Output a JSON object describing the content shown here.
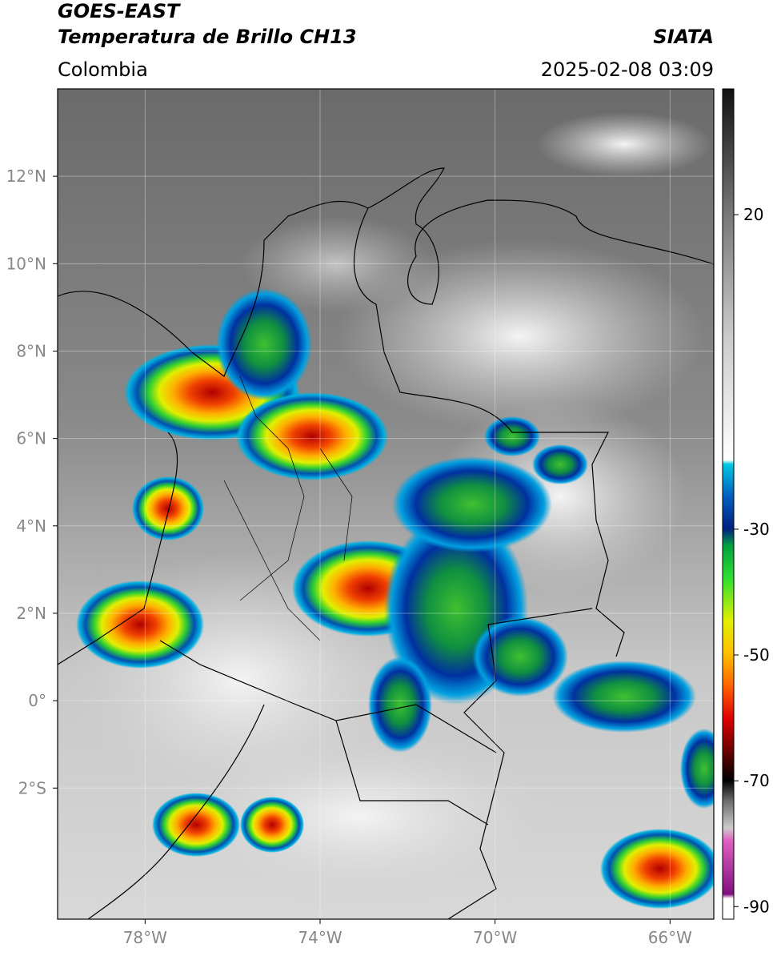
{
  "header": {
    "title": "GOES-EAST",
    "subtitle": "Temperatura de Brillo CH13",
    "source": "SIATA",
    "region": "Colombia",
    "datetime": "2025-02-08 03:09"
  },
  "map": {
    "xlim": [
      -80,
      -65
    ],
    "ylim": [
      -5,
      14
    ],
    "xticks": [
      {
        "value": -78,
        "label": "78°W"
      },
      {
        "value": -74,
        "label": "74°W"
      },
      {
        "value": -70,
        "label": "70°W"
      },
      {
        "value": -66,
        "label": "66°W"
      }
    ],
    "yticks": [
      {
        "value": 12,
        "label": "12°N"
      },
      {
        "value": 10,
        "label": "10°N"
      },
      {
        "value": 8,
        "label": "8°N"
      },
      {
        "value": 6,
        "label": "6°N"
      },
      {
        "value": 4,
        "label": "4°N"
      },
      {
        "value": 2,
        "label": "2°N"
      },
      {
        "value": 0,
        "label": "0°"
      },
      {
        "value": -2,
        "label": "2°S"
      }
    ],
    "grid": true
  },
  "colorbar": {
    "lim": [
      -92,
      40
    ],
    "ticks": [
      20,
      -30,
      -50,
      -70,
      -90
    ]
  }
}
